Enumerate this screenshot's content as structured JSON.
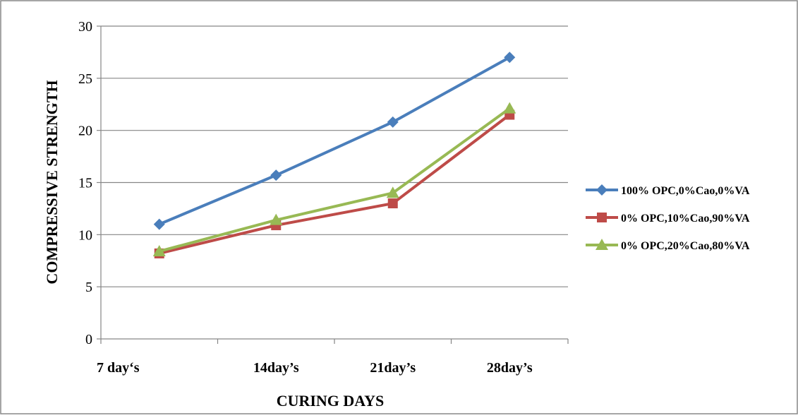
{
  "chart_data": {
    "type": "line",
    "title": "",
    "xlabel": "CURING DAYS",
    "ylabel": "COMPRESSIVE STRENGTH",
    "categories": [
      "7 day‘s",
      "14day’s",
      "21day’s",
      "28day’s"
    ],
    "ylim": [
      0,
      30
    ],
    "yticks": [
      0,
      5,
      10,
      15,
      20,
      25,
      30
    ],
    "grid": true,
    "legend_position": "right",
    "series": [
      {
        "name": "100% OPC,0%Cao,0%VA",
        "values": [
          11.0,
          15.7,
          20.8,
          27.0
        ],
        "color": "#4a7ebb",
        "marker": "diamond"
      },
      {
        "name": "0% OPC,10%Cao,90%VA",
        "values": [
          8.2,
          10.9,
          13.0,
          21.5
        ],
        "color": "#be4b48",
        "marker": "square"
      },
      {
        "name": "0% OPC,20%Cao,80%VA",
        "values": [
          8.4,
          11.4,
          14.0,
          22.1
        ],
        "color": "#98b954",
        "marker": "triangle"
      }
    ]
  }
}
